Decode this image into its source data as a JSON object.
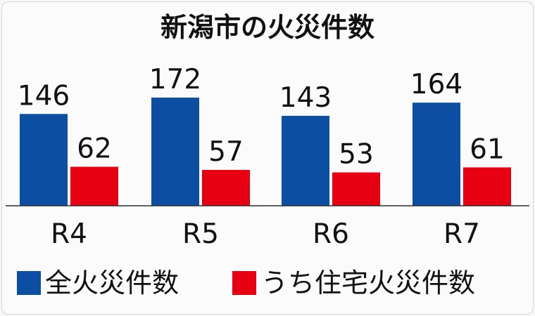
{
  "chart_data": {
    "type": "bar",
    "title": "新潟市の火災件数",
    "categories": [
      "R4",
      "R5",
      "R6",
      "R7"
    ],
    "series": [
      {
        "name": "全火災件数",
        "values": [
          146,
          172,
          143,
          164
        ],
        "color": "#0b4ea2"
      },
      {
        "name": "うち住宅火災件数",
        "values": [
          62,
          57,
          53,
          61
        ],
        "color": "#e60012"
      }
    ],
    "xlabel": "",
    "ylabel": "",
    "ylim": [
      0,
      190
    ],
    "grid": false,
    "legend_position": "bottom"
  }
}
